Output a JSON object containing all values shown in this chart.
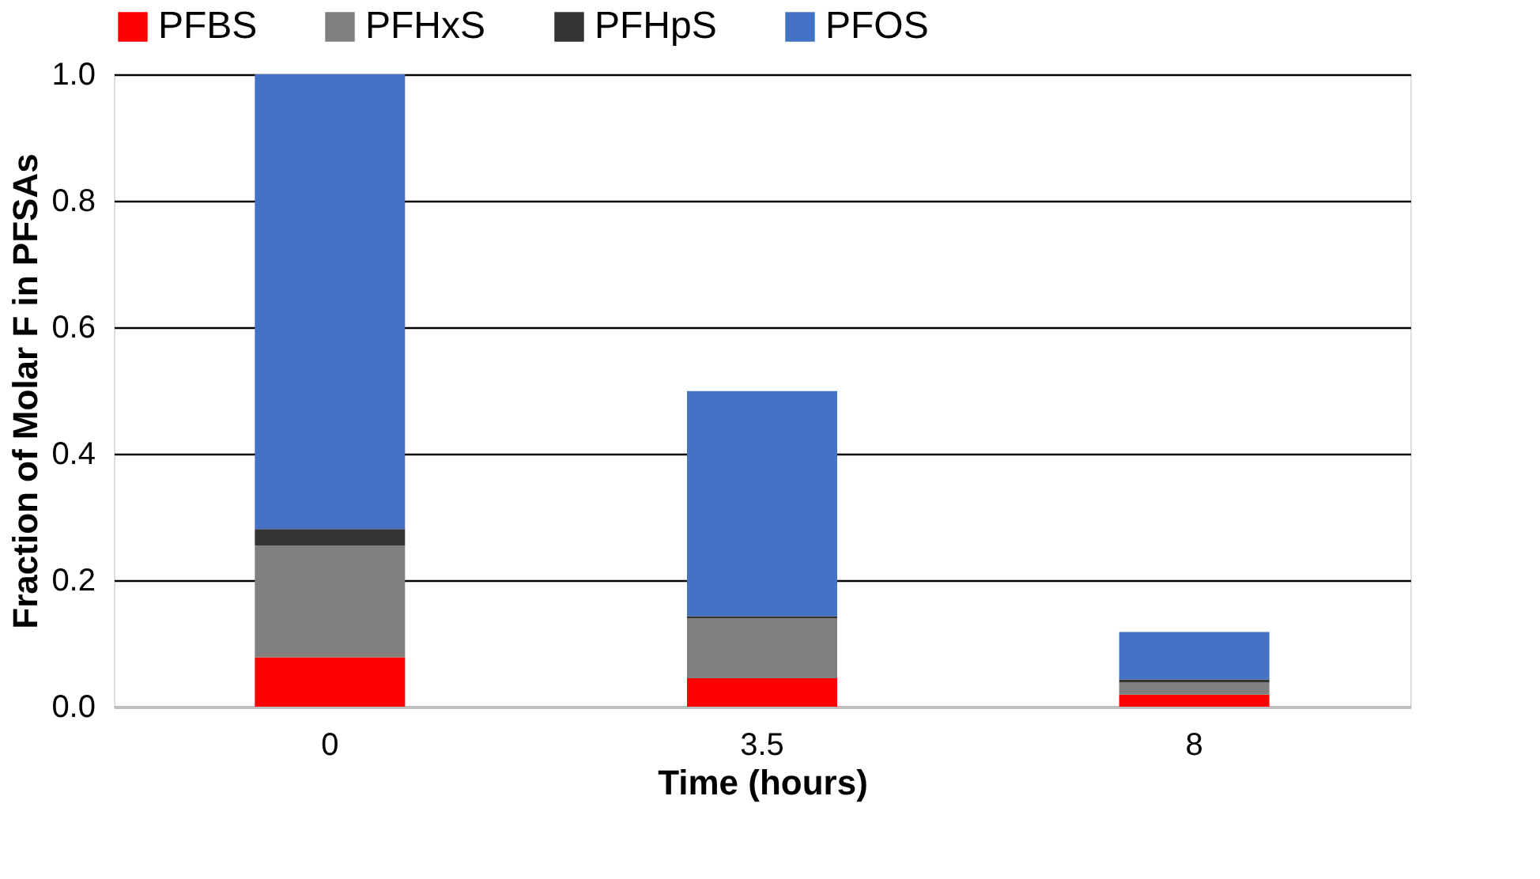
{
  "chart_data": {
    "type": "bar",
    "stacked": true,
    "xlabel": "Time (hours)",
    "ylabel": "Fraction of Molar F in PFSAs",
    "categories": [
      "0",
      "3.5",
      "8"
    ],
    "series": [
      {
        "name": "PFBS",
        "color": "#ff0000",
        "values": [
          0.078,
          0.045,
          0.019
        ]
      },
      {
        "name": "PFHxS",
        "color": "#808080",
        "values": [
          0.177,
          0.095,
          0.019
        ]
      },
      {
        "name": "PFHpS",
        "color": "#333333",
        "values": [
          0.026,
          0.003,
          0.005
        ]
      },
      {
        "name": "PFOS",
        "color": "#4472c4",
        "values": [
          0.719,
          0.356,
          0.075
        ]
      }
    ],
    "ylim": [
      0,
      1.0
    ],
    "yticks": [
      {
        "value": 0,
        "label": "0.0"
      },
      {
        "value": 0.2,
        "label": "0.2"
      },
      {
        "value": 0.4,
        "label": "0.4"
      },
      {
        "value": 0.6,
        "label": "0.6"
      },
      {
        "value": 0.8,
        "label": "0.8"
      },
      {
        "value": 1.0,
        "label": "1.0"
      }
    ],
    "grid": "y",
    "legend": "top"
  }
}
